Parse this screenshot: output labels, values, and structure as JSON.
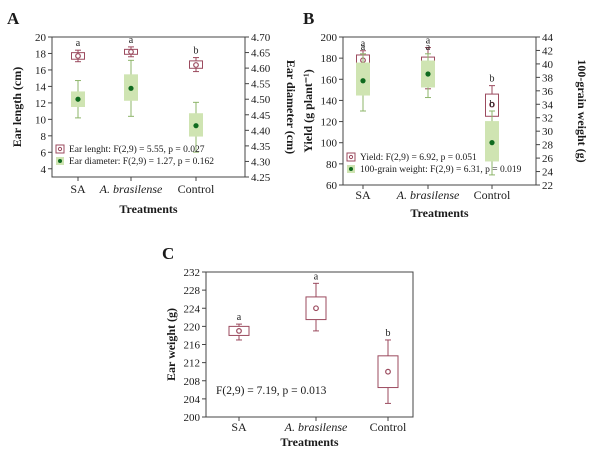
{
  "chart_data": [
    {
      "type": "box",
      "panel_label": "A",
      "xlabel": "Treatments",
      "categories": [
        "SA",
        "A. brasilense",
        "Control"
      ],
      "category_italic": [
        false,
        true,
        false
      ],
      "y_left": {
        "label": "Ear length (cm)",
        "range": [
          3,
          20
        ],
        "ticks": [
          "4",
          "6",
          "8",
          "10",
          "12",
          "14",
          "16",
          "18",
          "20"
        ],
        "tick_values": [
          4,
          6,
          8,
          10,
          12,
          14,
          16,
          18,
          20
        ]
      },
      "y_right": {
        "label": "Ear diameter (cm)",
        "range": [
          4.25,
          4.7
        ],
        "ticks": [
          "4.25",
          "4.30",
          "4.35",
          "4.40",
          "4.45",
          "4.50",
          "4.55",
          "4.60",
          "4.65",
          "4.70"
        ],
        "tick_values": [
          4.25,
          4.3,
          4.35,
          4.4,
          4.45,
          4.5,
          4.55,
          4.6,
          4.65,
          4.7
        ]
      },
      "series": [
        {
          "name": "Ear lenght: F(2,9) = 5.55, p = 0.027",
          "style": "hollow",
          "axis": "left",
          "mean": [
            17.7,
            18.2,
            16.6
          ],
          "box": [
            [
              17.3,
              18.1
            ],
            [
              17.9,
              18.5
            ],
            [
              16.2,
              17.1
            ]
          ],
          "whisker": [
            [
              17.0,
              18.4
            ],
            [
              17.6,
              18.8
            ],
            [
              15.8,
              17.5
            ]
          ],
          "letters": [
            "a",
            "a",
            "b"
          ]
        },
        {
          "name": "Ear diameter: F(2,9) = 1.27, p = 0.162",
          "style": "filled",
          "axis": "right",
          "mean": [
            4.5,
            4.535,
            4.415
          ],
          "box": [
            [
              4.475,
              4.525
            ],
            [
              4.495,
              4.58
            ],
            [
              4.38,
              4.455
            ]
          ],
          "whisker": [
            [
              4.44,
              4.56
            ],
            [
              4.445,
              4.625
            ],
            [
              4.33,
              4.49
            ]
          ],
          "letters": []
        }
      ]
    },
    {
      "type": "box",
      "panel_label": "B",
      "xlabel": "Treatments",
      "categories": [
        "SA",
        "A. brasilense",
        "Control"
      ],
      "category_italic": [
        false,
        true,
        false
      ],
      "y_left": {
        "label": "Yield (g plant⁻¹)",
        "range": [
          60,
          200
        ],
        "ticks": [
          "60",
          "80",
          "100",
          "120",
          "140",
          "160",
          "180",
          "200"
        ],
        "tick_values": [
          60,
          80,
          100,
          120,
          140,
          160,
          180,
          200
        ]
      },
      "y_right": {
        "label": "100-grain weight (g)",
        "range": [
          22,
          44
        ],
        "ticks": [
          "22",
          "24",
          "26",
          "28",
          "30",
          "32",
          "34",
          "36",
          "38",
          "40",
          "42",
          "44"
        ],
        "tick_values": [
          22,
          24,
          26,
          28,
          30,
          32,
          34,
          36,
          38,
          40,
          42,
          44
        ]
      },
      "series": [
        {
          "name": "Yield: F(2,9) = 6.92, p = 0.051",
          "style": "hollow",
          "axis": "left",
          "mean": [
            178,
            171,
            136
          ],
          "box": [
            [
              174,
              183
            ],
            [
              162,
              181
            ],
            [
              125,
              146
            ]
          ],
          "whisker": [
            [
              170,
              187
            ],
            [
              151,
              190
            ],
            [
              113,
              154
            ]
          ],
          "letters": [
            "a",
            "a",
            "b"
          ]
        },
        {
          "name": "100-grain weight: F(2,9) = 6.31, p = 0.019",
          "style": "filled",
          "axis": "right",
          "mean": [
            37.5,
            38.5,
            28.3
          ],
          "box": [
            [
              35.3,
              40.2
            ],
            [
              36.5,
              40.5
            ],
            [
              25.5,
              31.5
            ]
          ],
          "whisker": [
            [
              33.0,
              41.5
            ],
            [
              35.0,
              41.5
            ],
            [
              23.5,
              33.0
            ]
          ],
          "letters": [
            "a",
            "a",
            "b"
          ]
        }
      ]
    },
    {
      "type": "box",
      "panel_label": "C",
      "xlabel": "Treatments",
      "categories": [
        "SA",
        "A. brasilense",
        "Control"
      ],
      "category_italic": [
        false,
        true,
        false
      ],
      "y_left": {
        "label": "Ear weight (g)",
        "range": [
          200,
          232
        ],
        "ticks": [
          "200",
          "204",
          "208",
          "212",
          "216",
          "220",
          "224",
          "228",
          "232"
        ],
        "tick_values": [
          200,
          204,
          208,
          212,
          216,
          220,
          224,
          228,
          232
        ]
      },
      "annotation": "F(2,9) = 7.19, p = 0.013",
      "series": [
        {
          "name": "",
          "style": "hollow",
          "axis": "left",
          "mean": [
            219,
            224,
            210
          ],
          "box": [
            [
              218,
              220
            ],
            [
              221.5,
              226.5
            ],
            [
              206.5,
              213.5
            ]
          ],
          "whisker": [
            [
              217,
              220.5
            ],
            [
              219,
              229.5
            ],
            [
              203,
              217
            ]
          ],
          "letters": [
            "a",
            "a",
            "b"
          ]
        }
      ]
    }
  ]
}
